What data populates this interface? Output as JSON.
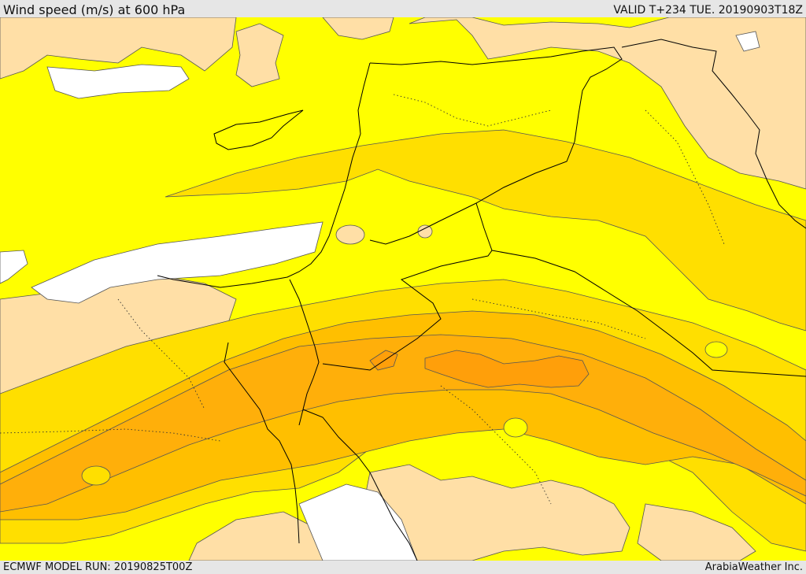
{
  "header": {
    "title": "Wind speed (m/s) at 600 hPa",
    "valid": "VALID T+234 TUE. 20190903T18Z"
  },
  "footer": {
    "model_run": "ECMWF MODEL RUN: 20190825T00Z",
    "credit": "ArabiaWeather Inc."
  },
  "colors": {
    "calm_white": "#ffffff",
    "light_peach": "#ffdfa6",
    "yellow": "#ffff00",
    "gold": "#ffdf00",
    "amber": "#ffbf00",
    "orange_light": "#ffaf0a",
    "orange": "#ff9f0a",
    "border": "#000000",
    "contour": "#555555"
  }
}
